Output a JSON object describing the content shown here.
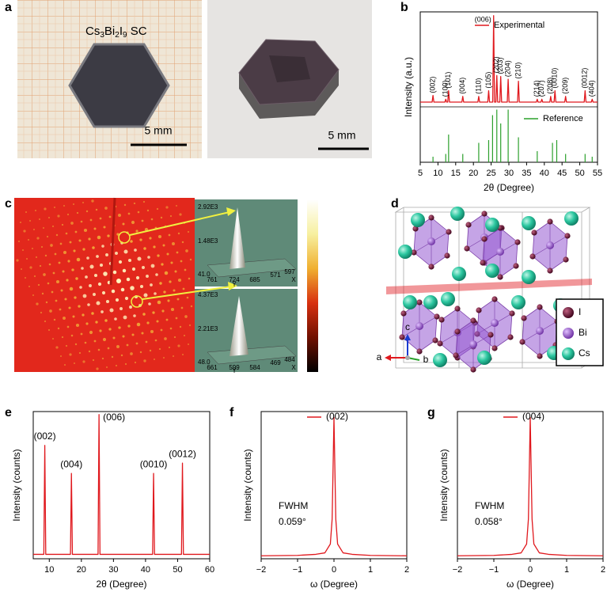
{
  "panel_labels": [
    "a",
    "b",
    "c",
    "d",
    "e",
    "f",
    "g"
  ],
  "photo": {
    "formula": [
      "Cs",
      "3",
      "Bi",
      "2",
      "I",
      "9",
      " SC"
    ],
    "scale_bars": [
      "5 mm",
      "5 mm"
    ]
  },
  "diffraction": {
    "insets": [
      {
        "z_labels": [
          "2.92E3",
          "1.48E3",
          "41.0"
        ],
        "y_labels": [
          "761",
          "724",
          "685"
        ],
        "x_labels": [
          "571",
          "597"
        ],
        "y_axis": "Y",
        "x_axis": "X"
      },
      {
        "z_labels": [
          "4.37E3",
          "2.21E3",
          "48.0"
        ],
        "y_labels": [
          "661",
          "599",
          "584"
        ],
        "x_labels": [
          "469",
          "484"
        ],
        "y_axis": "Y",
        "x_axis": "X"
      }
    ]
  },
  "structure": {
    "legend": [
      "I",
      "Bi",
      "Cs"
    ],
    "axes": [
      "a",
      "b",
      "c"
    ]
  },
  "chart_data": [
    {
      "type": "xrd",
      "xlabel": "2θ (Degree)",
      "ylabel": "Intensity (a.u.)",
      "xlim": [
        5,
        55
      ],
      "xticks": [
        5,
        10,
        15,
        20,
        25,
        30,
        35,
        40,
        45,
        50,
        55
      ],
      "series": [
        {
          "name": "Experimental",
          "type": "line",
          "color": "#e0191e",
          "ylim": [
            0,
            100
          ],
          "x": [
            5,
            8.35,
            8.6,
            8.85,
            11.95,
            12.2,
            12.45,
            12.75,
            13.0,
            13.25,
            16.75,
            17.0,
            17.25,
            21.25,
            21.5,
            21.75,
            24.05,
            24.3,
            24.55,
            25.45,
            25.7,
            25.95,
            26.35,
            26.6,
            26.85,
            27.45,
            27.7,
            27.95,
            29.55,
            29.8,
            30.05,
            32.45,
            32.7,
            32.95,
            37.75,
            38.0,
            38.25,
            39.05,
            39.3,
            39.55,
            41.55,
            41.8,
            42.05,
            42.75,
            43.0,
            43.25,
            45.75,
            46.0,
            46.25,
            51.25,
            51.5,
            51.75,
            53.25,
            53.5,
            53.75,
            55
          ],
          "values": [
            5,
            5,
            12,
            5,
            5,
            8,
            5,
            5,
            17,
            5,
            5,
            11,
            5,
            5,
            11,
            5,
            5,
            17,
            5,
            5,
            96,
            5,
            5,
            33,
            5,
            5,
            32,
            5,
            5,
            29,
            5,
            5,
            27,
            5,
            5,
            8,
            5,
            5,
            8,
            5,
            5,
            11,
            5,
            5,
            17,
            5,
            5,
            11,
            5,
            5,
            17,
            5,
            5,
            8,
            5,
            5
          ]
        },
        {
          "name": "Reference",
          "type": "stem",
          "color": "#2ca02c",
          "ylim": [
            0,
            100
          ],
          "x": [
            8.6,
            12.2,
            13.0,
            17.0,
            21.5,
            24.3,
            25.4,
            26.6,
            27.7,
            29.8,
            32.7,
            38.0,
            42.3,
            43.5,
            46.0,
            51.5,
            53.5
          ],
          "values": [
            10,
            15,
            50,
            15,
            35,
            40,
            85,
            95,
            70,
            95,
            45,
            20,
            35,
            40,
            15,
            15,
            10
          ]
        }
      ],
      "peak_labels": [
        "(002)",
        "(100)",
        "(101)",
        "(004)",
        "(110)",
        "(105)",
        "(006)",
        "(202)",
        "(203)",
        "(204)",
        "(210)",
        "(214)",
        "(207)",
        "(208)",
        "(0010)",
        "(209)",
        "(0012)",
        "(404)"
      ]
    },
    {
      "type": "line",
      "xlabel": "2θ (Degree)",
      "ylabel": "Intensity (counts)",
      "xlim": [
        5,
        60
      ],
      "xticks": [
        10,
        20,
        30,
        40,
        50,
        60
      ],
      "ylim": [
        0,
        100
      ],
      "color": "#e0191e",
      "x": [
        5,
        8.3,
        8.6,
        8.9,
        16.6,
        16.9,
        17.2,
        25.2,
        25.5,
        25.8,
        42.2,
        42.5,
        42.8,
        51.2,
        51.5,
        51.8,
        60
      ],
      "values": [
        3,
        3,
        77,
        3,
        3,
        58,
        3,
        3,
        98,
        3,
        3,
        58,
        3,
        3,
        65,
        3,
        3
      ],
      "peak_labels": [
        "(002)",
        "(004)",
        "(006)",
        "(0010)",
        "(0012)"
      ]
    },
    {
      "type": "line",
      "xlabel": "ω (Degree)",
      "ylabel": "Intensity (counts)",
      "xlim": [
        -2,
        2
      ],
      "xticks": [
        {
          "value": -2,
          "label": "−2"
        },
        {
          "value": -1,
          "label": "−1"
        },
        0,
        1,
        2
      ],
      "ylim": [
        0,
        100
      ],
      "series": [
        {
          "name": "(002)",
          "color": "#e0191e",
          "x": [
            -2,
            -1,
            -0.5,
            -0.25,
            -0.1,
            -0.05,
            -0.02,
            0,
            0.02,
            0.05,
            0.1,
            0.25,
            0.5,
            1,
            2
          ],
          "values": [
            2,
            2.3,
            3,
            4,
            10,
            27,
            68,
            96,
            68,
            27,
            10,
            4,
            3,
            2.3,
            2
          ]
        }
      ],
      "annotations": [
        "FWHM",
        "0.059°"
      ]
    },
    {
      "type": "line",
      "xlabel": "ω (Degree)",
      "ylabel": "Intensity (counts)",
      "xlim": [
        -2,
        2
      ],
      "xticks": [
        {
          "value": -2,
          "label": "−2"
        },
        {
          "value": -1,
          "label": "−1"
        },
        0,
        1,
        2
      ],
      "ylim": [
        0,
        100
      ],
      "series": [
        {
          "name": "(004)",
          "color": "#e0191e",
          "x": [
            -2,
            -1,
            -0.5,
            -0.25,
            -0.1,
            -0.05,
            -0.02,
            0,
            0.02,
            0.05,
            0.1,
            0.25,
            0.5,
            1,
            2
          ],
          "values": [
            2,
            2.3,
            3,
            4,
            10,
            27,
            68,
            96,
            68,
            27,
            10,
            4,
            3,
            2.3,
            2
          ]
        }
      ],
      "annotations": [
        "FWHM",
        "0.058°"
      ]
    }
  ]
}
